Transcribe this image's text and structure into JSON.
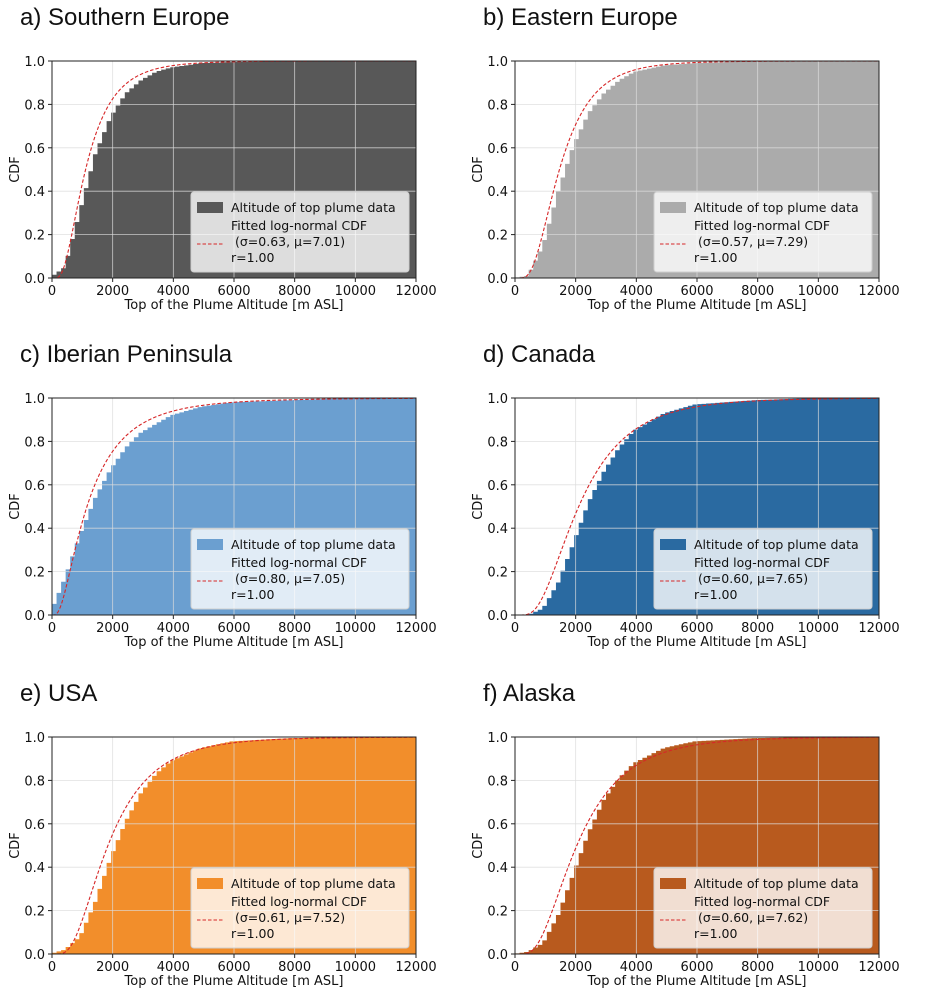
{
  "figure": {
    "common": {
      "xlabel": "Top of the Plume Altitude [m ASL]",
      "ylabel": "CDF",
      "xlim": [
        0,
        12000
      ],
      "ylim": [
        0,
        1.0
      ],
      "xticks": [
        "0",
        "2000",
        "4000",
        "6000",
        "8000",
        "10000",
        "12000"
      ],
      "yticks": [
        "0.0",
        "0.2",
        "0.4",
        "0.6",
        "0.8",
        "1.0"
      ],
      "legend_hist": "Altitude of top plume data",
      "legend_fit": "Fitted log-normal CDF",
      "fit_color": "#d62728",
      "grid": true,
      "legend_position": "lower-right"
    }
  },
  "chart_data": [
    {
      "type": "area",
      "title": "a) Southern Europe",
      "color": "#585858",
      "sigma": 0.63,
      "mu": 7.01,
      "param_text": "(σ=0.63, μ=7.01)",
      "r_text": "r=1.00",
      "x": [
        0,
        500,
        1000,
        1500,
        2000,
        2500,
        3000,
        3500,
        4000,
        5000,
        6000,
        8000,
        10000,
        12000
      ],
      "y": [
        0.0,
        0.05,
        0.31,
        0.57,
        0.74,
        0.85,
        0.91,
        0.95,
        0.97,
        0.99,
        0.995,
        1.0,
        1.0,
        1.0
      ]
    },
    {
      "type": "area",
      "title": "b) Eastern Europe",
      "color": "#ababab",
      "sigma": 0.57,
      "mu": 7.29,
      "param_text": "(σ=0.57, μ=7.29)",
      "r_text": "r=1.00",
      "x": [
        0,
        500,
        1000,
        1500,
        2000,
        2500,
        3000,
        3500,
        4000,
        5000,
        6000,
        8000,
        10000,
        12000
      ],
      "y": [
        0.0,
        0.01,
        0.15,
        0.4,
        0.61,
        0.76,
        0.85,
        0.91,
        0.95,
        0.98,
        0.99,
        1.0,
        1.0,
        1.0
      ]
    },
    {
      "type": "area",
      "title": "c) Iberian Peninsula",
      "color": "#6b9fd0",
      "sigma": 0.8,
      "mu": 7.05,
      "param_text": "(σ=0.80, μ=7.05)",
      "r_text": "r=1.00",
      "x": [
        0,
        500,
        1000,
        1500,
        2000,
        2500,
        3000,
        3500,
        4000,
        5000,
        6000,
        8000,
        10000,
        12000
      ],
      "y": [
        0.0,
        0.17,
        0.37,
        0.54,
        0.67,
        0.77,
        0.84,
        0.88,
        0.92,
        0.96,
        0.98,
        0.99,
        1.0,
        1.0
      ]
    },
    {
      "type": "area",
      "title": "d) Canada",
      "color": "#2a6aa1",
      "sigma": 0.6,
      "mu": 7.65,
      "param_text": "(σ=0.60, μ=7.65)",
      "r_text": "r=1.00",
      "x": [
        0,
        500,
        1000,
        1500,
        2000,
        2500,
        3000,
        3500,
        4000,
        5000,
        6000,
        8000,
        10000,
        12000
      ],
      "y": [
        0.0,
        0.0,
        0.03,
        0.15,
        0.33,
        0.52,
        0.66,
        0.77,
        0.85,
        0.93,
        0.97,
        0.99,
        1.0,
        1.0
      ]
    },
    {
      "type": "area",
      "title": "e) USA",
      "color": "#f28e2b",
      "sigma": 0.61,
      "mu": 7.52,
      "param_text": "(σ=0.61, μ=7.52)",
      "r_text": "r=1.00",
      "x": [
        0,
        500,
        1000,
        1500,
        2000,
        2500,
        3000,
        3500,
        4000,
        5000,
        6000,
        8000,
        10000,
        12000
      ],
      "y": [
        0.0,
        0.02,
        0.08,
        0.24,
        0.44,
        0.61,
        0.74,
        0.83,
        0.89,
        0.95,
        0.98,
        0.995,
        1.0,
        1.0
      ]
    },
    {
      "type": "area",
      "title": "f) Alaska",
      "color": "#b85a1e",
      "sigma": 0.6,
      "mu": 7.62,
      "param_text": "(σ=0.60, μ=7.62)",
      "r_text": "r=1.00",
      "x": [
        0,
        500,
        1000,
        1500,
        2000,
        2500,
        3000,
        3500,
        4000,
        5000,
        6000,
        8000,
        10000,
        12000
      ],
      "y": [
        0.0,
        0.01,
        0.05,
        0.18,
        0.37,
        0.56,
        0.71,
        0.81,
        0.88,
        0.95,
        0.98,
        0.995,
        1.0,
        1.0
      ]
    }
  ]
}
